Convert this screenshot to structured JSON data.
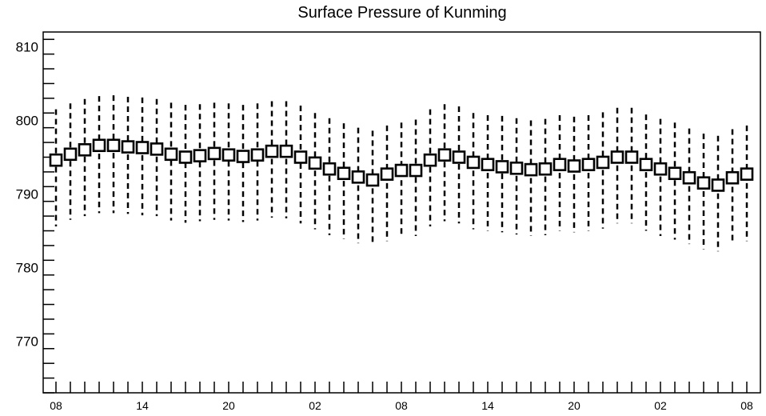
{
  "chart_data": {
    "type": "box",
    "title": "Surface Pressure of Kunming",
    "xlabel": "",
    "ylabel": "",
    "ylim": [
      763,
      812
    ],
    "yticks": [
      770,
      780,
      790,
      800,
      810
    ],
    "x_tick_labels": [
      {
        "index": 0,
        "label": "08"
      },
      {
        "index": 6,
        "label": "14"
      },
      {
        "index": 12,
        "label": "20"
      },
      {
        "index": 18,
        "label": "02"
      },
      {
        "index": 24,
        "label": "08"
      },
      {
        "index": 30,
        "label": "14"
      },
      {
        "index": 36,
        "label": "20"
      },
      {
        "index": 42,
        "label": "02"
      },
      {
        "index": 48,
        "label": "08"
      }
    ],
    "x_count": 49,
    "grid": false,
    "legend": "none",
    "box_values": [
      794.6,
      795.4,
      796.0,
      796.6,
      796.6,
      796.4,
      796.3,
      796.1,
      795.4,
      795.0,
      795.2,
      795.5,
      795.3,
      795.1,
      795.3,
      795.8,
      795.8,
      795.0,
      794.2,
      793.4,
      792.8,
      792.3,
      791.9,
      792.7,
      793.2,
      793.2,
      794.6,
      795.3,
      795.0,
      794.3,
      794.0,
      793.7,
      793.5,
      793.3,
      793.4,
      794.0,
      793.8,
      794.0,
      794.3,
      795.0,
      795.0,
      794.0,
      793.4,
      792.8,
      792.2,
      791.5,
      791.2,
      792.2,
      792.7
    ],
    "whisker_high": [
      801.5,
      802.3,
      802.9,
      803.3,
      803.4,
      803.2,
      803.1,
      802.9,
      802.4,
      802.1,
      802.2,
      802.4,
      802.3,
      802.1,
      802.3,
      802.6,
      802.6,
      802.0,
      801.0,
      800.3,
      799.6,
      799.0,
      798.6,
      799.3,
      799.7,
      800.1,
      801.5,
      802.2,
      801.9,
      801.0,
      800.7,
      800.6,
      800.3,
      800.0,
      800.2,
      800.7,
      800.5,
      800.7,
      801.1,
      801.7,
      801.7,
      800.8,
      800.2,
      799.7,
      798.9,
      798.2,
      797.9,
      798.8,
      799.3
    ],
    "whisker_low": [
      785.6,
      786.5,
      787.0,
      787.4,
      787.4,
      787.3,
      787.1,
      787.0,
      786.4,
      786.1,
      786.3,
      786.5,
      786.4,
      786.2,
      786.4,
      786.8,
      786.7,
      786.0,
      785.2,
      784.4,
      783.9,
      783.3,
      783.2,
      783.6,
      784.3,
      784.3,
      785.6,
      786.3,
      786.0,
      785.2,
      785.0,
      784.8,
      784.5,
      784.3,
      784.4,
      785.0,
      784.8,
      785.0,
      785.3,
      786.0,
      786.0,
      785.0,
      784.3,
      783.8,
      783.2,
      782.5,
      782.2,
      783.2,
      783.6
    ]
  }
}
